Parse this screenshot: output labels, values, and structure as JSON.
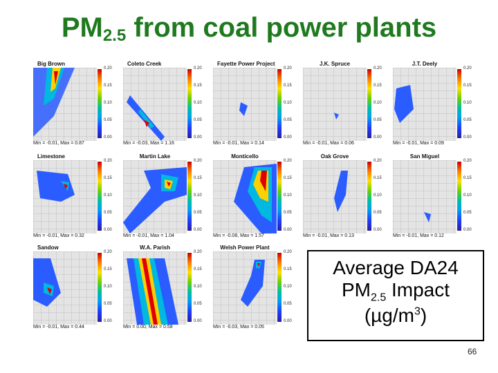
{
  "title": {
    "main": "PM",
    "sub": "2.5",
    "rest": " from coal power plants"
  },
  "colorbar_ticks": [
    "0.20",
    "0.15",
    "0.10",
    "0.05",
    "0.00"
  ],
  "panels": [
    {
      "name": "Big Brown",
      "minmax": "Min = -0.01, Max = 0.87"
    },
    {
      "name": "Coleto Creek",
      "minmax": "Min = -0.03, Max = 1.16"
    },
    {
      "name": "Fayette Power Project",
      "minmax": "Min = -0.01, Max = 0.14"
    },
    {
      "name": "J.K. Spruce",
      "minmax": "Min = -0.01, Max = 0.06"
    },
    {
      "name": "J.T. Deely",
      "minmax": "Min = -0.01, Max = 0.09"
    },
    {
      "name": "Limestone",
      "minmax": "Min = -0.01, Max = 0.32"
    },
    {
      "name": "Martin Lake",
      "minmax": "Min = -0.01, Max = 1.04"
    },
    {
      "name": "Monticello",
      "minmax": "Min = -0.08, Max = 1.57"
    },
    {
      "name": "Oak Grove",
      "minmax": "Min = -0.01, Max = 0.13"
    },
    {
      "name": "San Miguel",
      "minmax": "Min = -0.01, Max = 0.12"
    },
    {
      "name": "Sandow",
      "minmax": "Min = -0.01, Max = 0.44"
    },
    {
      "name": "W.A. Parish",
      "minmax": "Min = 0.00, Max = 0.58"
    },
    {
      "name": "Welsh Power Plant",
      "minmax": "Min = -0.03, Max = 0.05"
    }
  ],
  "legend": {
    "line1": "Average DA24",
    "line2a": "PM",
    "line2sub": "2.5",
    "line2b": " Impact",
    "line3a": "(µg/m",
    "line3sup": "3",
    "line3b": ")"
  },
  "page_number": "66"
}
